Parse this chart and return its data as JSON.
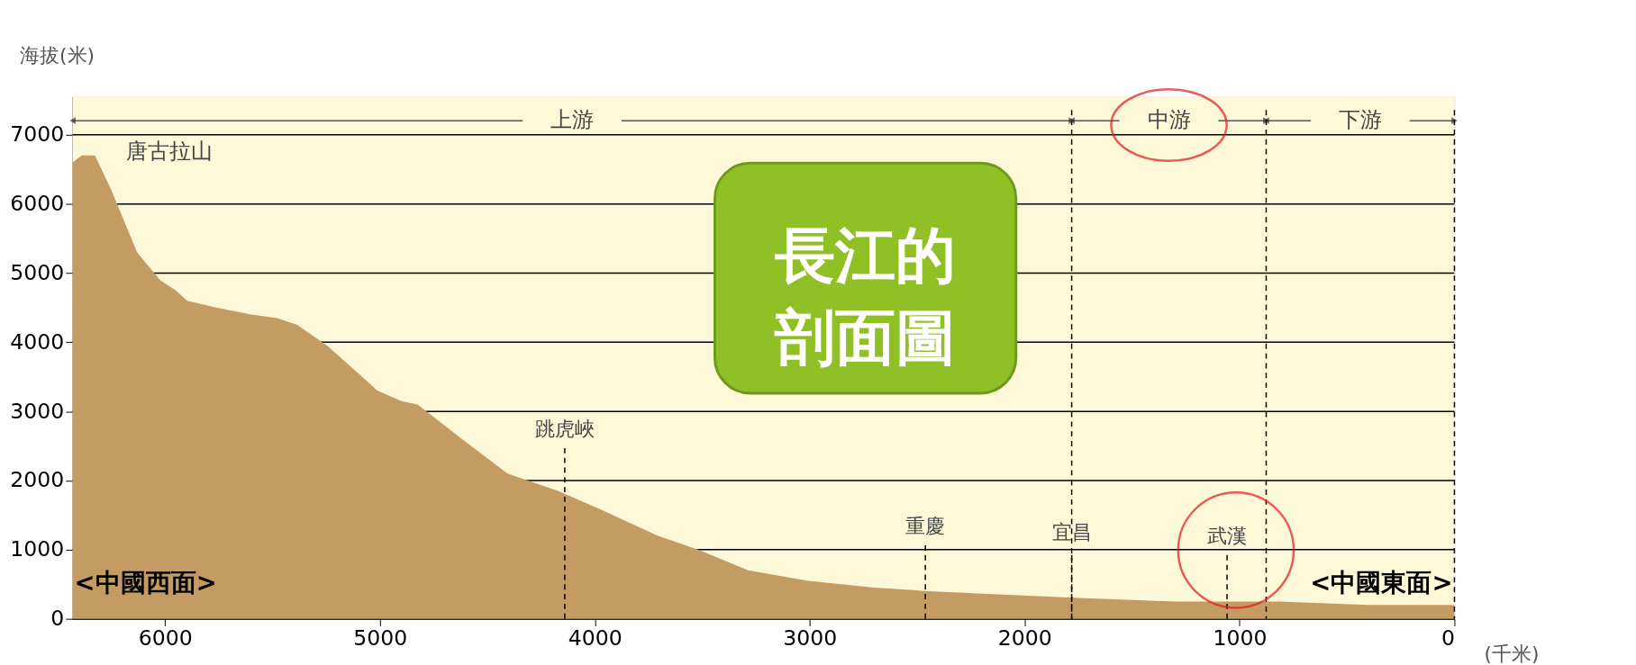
{
  "chart_data": {
    "type": "area",
    "title": "長江的剖面圖",
    "xlabel": "(千米)",
    "ylabel": "海拔(米)",
    "x": [
      6430,
      6387,
      6326,
      6250,
      6130,
      6023,
      5950,
      5897,
      5757,
      5600,
      5478,
      5385,
      5245,
      5100,
      5012,
      4900,
      4825,
      4639,
      4406,
      4172,
      3986,
      3706,
      3520,
      3287,
      3007,
      2700,
      2448,
      2100,
      1748,
      1300,
      816,
      400,
      0
    ],
    "series": [
      {
        "color": "#c49b63",
        "values": [
          6600,
          6700,
          6700,
          6200,
          5300,
          4900,
          4750,
          4600,
          4500,
          4400,
          4350,
          4250,
          3950,
          3550,
          3300,
          3150,
          3100,
          2650,
          2100,
          1850,
          1600,
          1200,
          1000,
          700,
          550,
          450,
          400,
          350,
          300,
          250,
          250,
          200,
          200
        ]
      }
    ],
    "xlim": [
      6430,
      0
    ],
    "ylim": [
      0,
      7550
    ],
    "xticks": [
      6000,
      5000,
      4000,
      3000,
      2000,
      1000,
      0
    ],
    "yticks": [
      0,
      1000,
      2000,
      3000,
      4000,
      5000,
      6000,
      7000
    ],
    "grid": "y",
    "bands": [
      {
        "axis": "x",
        "from": 6430,
        "to": 1781,
        "label": "上游",
        "color": "#fdf8d8"
      },
      {
        "axis": "x",
        "from": 1781,
        "to": 876,
        "label": "中游",
        "color": "#fdf8d8"
      },
      {
        "axis": "x",
        "from": 876,
        "to": 0,
        "label": "下游",
        "color": "#fdf8d8"
      }
    ],
    "ref_lines": [
      {
        "axis": "x",
        "value": 4140,
        "label": "跳虎峽",
        "line_style": "dashed"
      },
      {
        "axis": "x",
        "value": 2462,
        "label": "重慶",
        "line_style": "dashed"
      },
      {
        "axis": "x",
        "value": 1781,
        "label": "宜昌",
        "line_style": "dashed"
      },
      {
        "axis": "x",
        "value": 1058,
        "label": "武漢",
        "line_style": "dashed"
      },
      {
        "axis": "x",
        "value": 876,
        "line_style": "dashed"
      }
    ],
    "annotations": [
      "<中國西面>",
      "<中國東面>",
      "唐古拉山"
    ]
  }
}
